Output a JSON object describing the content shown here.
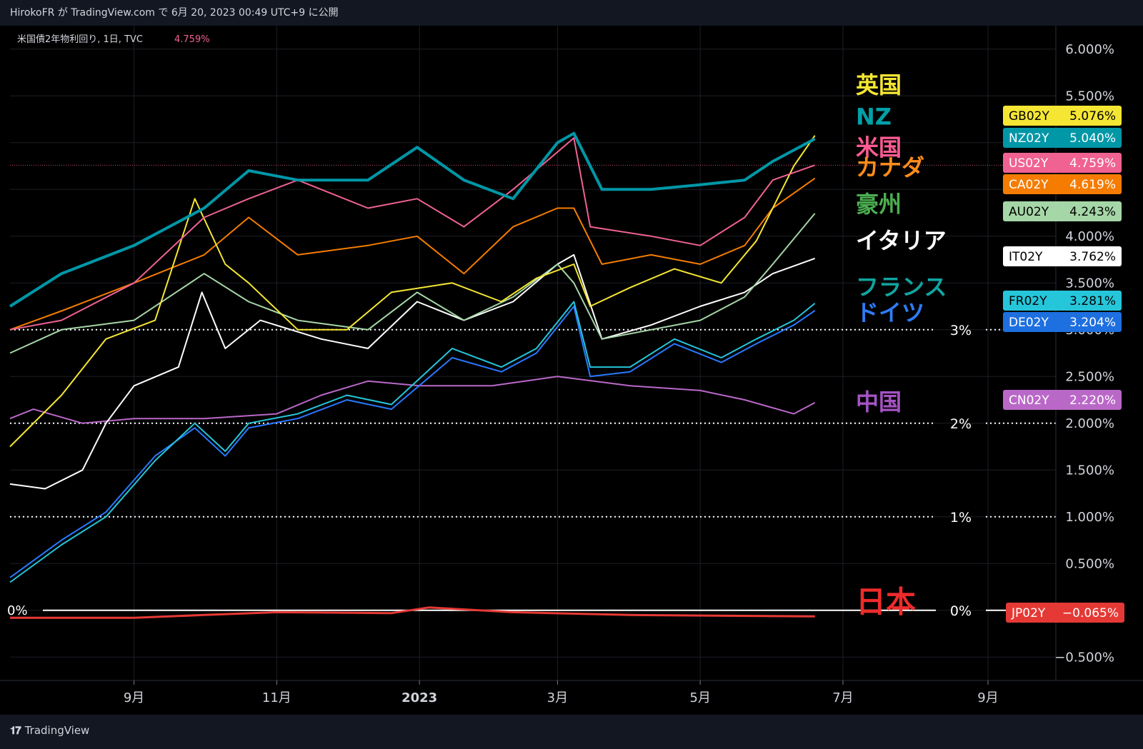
{
  "header": {
    "publisher": "HirokoFR が TradingView.com で 6月 20, 2023 00:49 UTC+9 に公開"
  },
  "legend": {
    "symbol": "米国債2年物利回り, 1日, TVC",
    "value": "4.759%"
  },
  "footer": {
    "brand": "TradingView"
  },
  "chart_data": {
    "type": "line",
    "y_axis": {
      "ticks": [
        -0.5,
        0,
        0.5,
        1,
        1.5,
        2,
        2.5,
        3,
        3.5,
        4,
        4.5,
        5,
        5.5,
        6
      ],
      "tick_labels": [
        "−0.500%",
        "0.000%",
        "0.500%",
        "1.000%",
        "1.500%",
        "2.000%",
        "2.500%",
        "3.000%",
        "3.500%",
        "4.000%",
        "4.500%",
        "5.000%",
        "5.500%",
        "6.000%"
      ],
      "range": [
        -0.75,
        6.25
      ]
    },
    "x_axis": {
      "range": [
        "2022-07-10",
        "2023-09-30"
      ],
      "ticks": [
        {
          "date": "2022-09-01",
          "label": "9月"
        },
        {
          "date": "2022-11-01",
          "label": "11月"
        },
        {
          "date": "2023-01-01",
          "label": "2023"
        },
        {
          "date": "2023-03-01",
          "label": "3月"
        },
        {
          "date": "2023-05-01",
          "label": "5月"
        },
        {
          "date": "2023-07-01",
          "label": "7月"
        },
        {
          "date": "2023-09-01",
          "label": "9月"
        }
      ]
    },
    "reference_lines": [
      {
        "value": 3,
        "label": "3%"
      },
      {
        "value": 2,
        "label": "2%"
      },
      {
        "value": 1,
        "label": "1%"
      },
      {
        "value": 0,
        "label": "0%"
      }
    ],
    "left_zero_label": "0%",
    "current_price_line": 4.759,
    "series": [
      {
        "name": "英国",
        "symbol": "GB02Y",
        "last": "5.076%",
        "color": "#f5e633",
        "label_color": "#f5e633",
        "dates": [
          "2022-07-10",
          "2022-08-01",
          "2022-08-20",
          "2022-09-10",
          "2022-09-27",
          "2022-10-10",
          "2022-10-20",
          "2022-11-10",
          "2022-12-01",
          "2022-12-20",
          "2023-01-15",
          "2023-02-05",
          "2023-02-20",
          "2023-03-08",
          "2023-03-15",
          "2023-04-01",
          "2023-04-20",
          "2023-05-10",
          "2023-05-25",
          "2023-06-10",
          "2023-06-19"
        ],
        "values": [
          1.75,
          2.3,
          2.9,
          3.1,
          4.4,
          3.7,
          3.5,
          3.0,
          3.0,
          3.4,
          3.5,
          3.3,
          3.55,
          3.7,
          3.25,
          3.45,
          3.65,
          3.5,
          3.95,
          4.75,
          5.076
        ]
      },
      {
        "name": "NZ",
        "symbol": "NZ02Y",
        "last": "5.040%",
        "color": "#0097a7",
        "label_color": "#00a0a8",
        "dates": [
          "2022-07-10",
          "2022-08-01",
          "2022-09-01",
          "2022-10-01",
          "2022-10-20",
          "2022-11-10",
          "2022-12-10",
          "2022-12-31",
          "2023-01-20",
          "2023-02-10",
          "2023-03-01",
          "2023-03-08",
          "2023-03-20",
          "2023-04-10",
          "2023-05-01",
          "2023-05-20",
          "2023-06-01",
          "2023-06-19"
        ],
        "values": [
          3.25,
          3.6,
          3.9,
          4.3,
          4.7,
          4.6,
          4.6,
          4.95,
          4.6,
          4.4,
          5.0,
          5.1,
          4.5,
          4.5,
          4.55,
          4.6,
          4.8,
          5.04
        ]
      },
      {
        "name": "米国",
        "symbol": "US02Y",
        "last": "4.759%",
        "color": "#f06292",
        "label_color": "#ff5c93",
        "dates": [
          "2022-07-10",
          "2022-08-01",
          "2022-09-01",
          "2022-10-01",
          "2022-10-20",
          "2022-11-10",
          "2022-12-10",
          "2022-12-31",
          "2023-01-20",
          "2023-02-10",
          "2023-03-01",
          "2023-03-08",
          "2023-03-15",
          "2023-04-10",
          "2023-05-01",
          "2023-05-20",
          "2023-06-01",
          "2023-06-19"
        ],
        "values": [
          3.0,
          3.1,
          3.5,
          4.2,
          4.4,
          4.6,
          4.3,
          4.4,
          4.1,
          4.5,
          4.9,
          5.05,
          4.1,
          4.0,
          3.9,
          4.2,
          4.6,
          4.759
        ]
      },
      {
        "name": "カナダ",
        "symbol": "CA02Y",
        "last": "4.619%",
        "color": "#f57c00",
        "label_color": "#ff8c1a",
        "dates": [
          "2022-07-10",
          "2022-08-01",
          "2022-09-01",
          "2022-10-01",
          "2022-10-20",
          "2022-11-10",
          "2022-12-10",
          "2022-12-31",
          "2023-01-20",
          "2023-02-10",
          "2023-03-01",
          "2023-03-08",
          "2023-03-20",
          "2023-04-10",
          "2023-05-01",
          "2023-05-20",
          "2023-06-01",
          "2023-06-19"
        ],
        "values": [
          3.0,
          3.2,
          3.5,
          3.8,
          4.2,
          3.8,
          3.9,
          4.0,
          3.6,
          4.1,
          4.3,
          4.3,
          3.7,
          3.8,
          3.7,
          3.9,
          4.3,
          4.619
        ]
      },
      {
        "name": "豪州",
        "symbol": "AU02Y",
        "last": "4.243%",
        "color": "#a5d6a7",
        "label_color": "#4caf50",
        "dates": [
          "2022-07-10",
          "2022-08-01",
          "2022-09-01",
          "2022-10-01",
          "2022-10-20",
          "2022-11-10",
          "2022-12-10",
          "2022-12-31",
          "2023-01-20",
          "2023-02-10",
          "2023-03-01",
          "2023-03-08",
          "2023-03-20",
          "2023-04-10",
          "2023-05-01",
          "2023-05-20",
          "2023-06-01",
          "2023-06-19"
        ],
        "values": [
          2.75,
          3.0,
          3.1,
          3.6,
          3.3,
          3.1,
          3.0,
          3.4,
          3.1,
          3.35,
          3.7,
          3.5,
          2.9,
          3.0,
          3.1,
          3.35,
          3.7,
          4.243
        ]
      },
      {
        "name": "イタリア",
        "symbol": "IT02Y",
        "last": "3.762%",
        "color": "#ffffff",
        "label_color": "#ffffff",
        "dates": [
          "2022-07-10",
          "2022-07-25",
          "2022-08-10",
          "2022-08-20",
          "2022-09-01",
          "2022-09-20",
          "2022-09-30",
          "2022-10-10",
          "2022-10-25",
          "2022-11-20",
          "2022-12-10",
          "2022-12-31",
          "2023-01-20",
          "2023-02-10",
          "2023-03-01",
          "2023-03-08",
          "2023-03-20",
          "2023-04-10",
          "2023-05-01",
          "2023-05-20",
          "2023-06-01",
          "2023-06-19"
        ],
        "values": [
          1.35,
          1.3,
          1.5,
          2.0,
          2.4,
          2.6,
          3.4,
          2.8,
          3.1,
          2.9,
          2.8,
          3.3,
          3.1,
          3.3,
          3.7,
          3.8,
          2.9,
          3.05,
          3.25,
          3.4,
          3.6,
          3.762
        ]
      },
      {
        "name": "フランス",
        "symbol": "FR02Y",
        "last": "3.281%",
        "color": "#26c6da",
        "label_color": "#10a5a0",
        "dates": [
          "2022-07-10",
          "2022-08-01",
          "2022-08-20",
          "2022-09-10",
          "2022-09-27",
          "2022-10-10",
          "2022-10-20",
          "2022-11-10",
          "2022-12-01",
          "2022-12-20",
          "2023-01-15",
          "2023-02-05",
          "2023-02-20",
          "2023-03-08",
          "2023-03-15",
          "2023-04-01",
          "2023-04-20",
          "2023-05-10",
          "2023-05-25",
          "2023-06-10",
          "2023-06-19"
        ],
        "values": [
          0.3,
          0.7,
          1.0,
          1.6,
          2.0,
          1.7,
          2.0,
          2.1,
          2.3,
          2.2,
          2.8,
          2.6,
          2.8,
          3.3,
          2.6,
          2.6,
          2.9,
          2.7,
          2.9,
          3.1,
          3.281
        ]
      },
      {
        "name": "ドイツ",
        "symbol": "DE02Y",
        "last": "3.204%",
        "color": "#2979ff",
        "label_color": "#2d7cf6",
        "dates": [
          "2022-07-10",
          "2022-08-01",
          "2022-08-20",
          "2022-09-10",
          "2022-09-27",
          "2022-10-10",
          "2022-10-20",
          "2022-11-10",
          "2022-12-01",
          "2022-12-20",
          "2023-01-15",
          "2023-02-05",
          "2023-02-20",
          "2023-03-08",
          "2023-03-15",
          "2023-04-01",
          "2023-04-20",
          "2023-05-10",
          "2023-05-25",
          "2023-06-10",
          "2023-06-19"
        ],
        "values": [
          0.35,
          0.75,
          1.05,
          1.65,
          1.95,
          1.65,
          1.95,
          2.05,
          2.25,
          2.15,
          2.7,
          2.55,
          2.75,
          3.25,
          2.5,
          2.55,
          2.85,
          2.65,
          2.85,
          3.05,
          3.204
        ]
      },
      {
        "name": "中国",
        "symbol": "CN02Y",
        "last": "2.220%",
        "color": "#ba68c8",
        "label_color": "#a653c4",
        "dates": [
          "2022-07-10",
          "2022-07-20",
          "2022-08-10",
          "2022-09-01",
          "2022-10-01",
          "2022-11-01",
          "2022-11-20",
          "2022-12-10",
          "2023-01-01",
          "2023-02-01",
          "2023-03-01",
          "2023-04-01",
          "2023-05-01",
          "2023-05-20",
          "2023-06-10",
          "2023-06-19"
        ],
        "values": [
          2.05,
          2.15,
          2.0,
          2.05,
          2.05,
          2.1,
          2.3,
          2.45,
          2.4,
          2.4,
          2.5,
          2.4,
          2.35,
          2.25,
          2.1,
          2.22
        ]
      },
      {
        "name": "日本",
        "symbol": "JP02Y",
        "last": "−0.065%",
        "color": "#e53935",
        "label_color": "#ef2b2b",
        "dates": [
          "2022-07-10",
          "2022-09-01",
          "2022-10-01",
          "2022-11-01",
          "2022-12-20",
          "2023-01-05",
          "2023-02-10",
          "2023-04-01",
          "2023-06-19"
        ],
        "values": [
          -0.08,
          -0.08,
          -0.05,
          -0.02,
          -0.03,
          0.03,
          -0.02,
          -0.05,
          -0.065
        ]
      }
    ]
  }
}
